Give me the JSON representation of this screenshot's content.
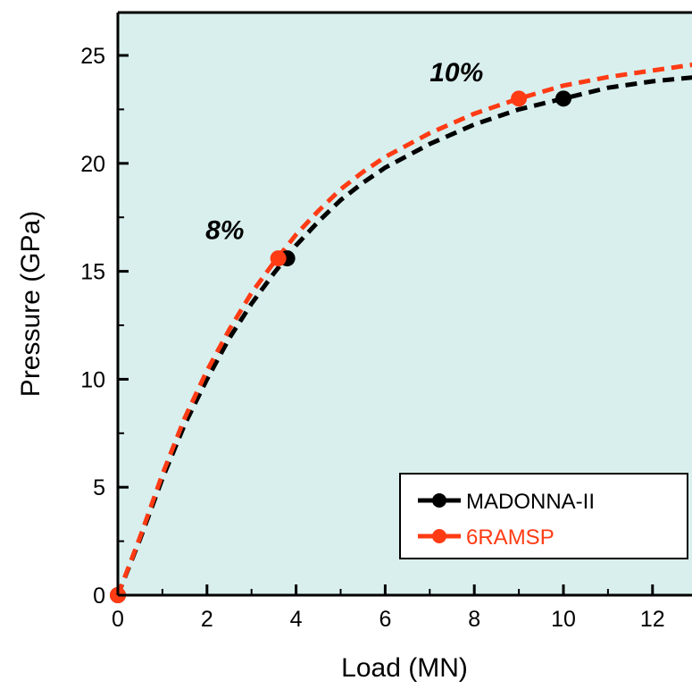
{
  "chart_data": {
    "type": "line",
    "title": "",
    "xlabel": "Load (MN)",
    "ylabel": "Pressure (GPa)",
    "xlim": [
      0,
      13
    ],
    "ylim": [
      0,
      27
    ],
    "xticks": [
      0,
      2,
      4,
      6,
      8,
      10,
      12
    ],
    "yticks": [
      0,
      5,
      10,
      15,
      20,
      25
    ],
    "x_tick_labels": [
      "0",
      "2",
      "4",
      "6",
      "8",
      "10",
      "12"
    ],
    "y_tick_labels": [
      "0",
      "5",
      "10",
      "15",
      "20",
      "25"
    ],
    "grid": false,
    "background_color": "#d8efed",
    "legend_position": "bottom-right",
    "series": [
      {
        "name": "MADONNA-II",
        "color": "#000000",
        "line_style": "dashed",
        "marker": "circle",
        "points": [
          [
            0,
            0
          ],
          [
            3.8,
            15.6
          ],
          [
            10,
            23
          ]
        ],
        "fit_curve": [
          [
            0,
            0
          ],
          [
            0.5,
            2.6
          ],
          [
            1,
            5.4
          ],
          [
            1.5,
            7.9
          ],
          [
            2,
            10.0
          ],
          [
            2.5,
            11.9
          ],
          [
            3,
            13.5
          ],
          [
            3.5,
            14.9
          ],
          [
            4,
            16.2
          ],
          [
            4.5,
            17.3
          ],
          [
            5,
            18.3
          ],
          [
            5.5,
            19.1
          ],
          [
            6,
            19.8
          ],
          [
            7,
            20.9
          ],
          [
            8,
            21.8
          ],
          [
            9,
            22.5
          ],
          [
            10,
            23.0
          ],
          [
            11,
            23.5
          ],
          [
            12,
            23.8
          ],
          [
            13,
            24.0
          ]
        ]
      },
      {
        "name": "6RAMSP",
        "color": "#ff3b14",
        "line_style": "dashed",
        "marker": "circle",
        "points": [
          [
            0,
            0
          ],
          [
            3.6,
            15.6
          ],
          [
            9,
            23
          ]
        ],
        "fit_curve": [
          [
            0,
            0
          ],
          [
            0.5,
            2.7
          ],
          [
            1,
            5.6
          ],
          [
            1.5,
            8.2
          ],
          [
            2,
            10.4
          ],
          [
            2.5,
            12.3
          ],
          [
            3,
            14.0
          ],
          [
            3.5,
            15.4
          ],
          [
            4,
            16.7
          ],
          [
            4.5,
            17.8
          ],
          [
            5,
            18.8
          ],
          [
            5.5,
            19.6
          ],
          [
            6,
            20.3
          ],
          [
            7,
            21.4
          ],
          [
            8,
            22.3
          ],
          [
            9,
            23.0
          ],
          [
            10,
            23.6
          ],
          [
            11,
            24.0
          ],
          [
            12,
            24.3
          ],
          [
            13,
            24.6
          ]
        ]
      }
    ],
    "annotations": [
      {
        "text": "8%",
        "x": 2.4,
        "y": 16.5
      },
      {
        "text": "10%",
        "x": 7.6,
        "y": 23.8
      }
    ]
  }
}
